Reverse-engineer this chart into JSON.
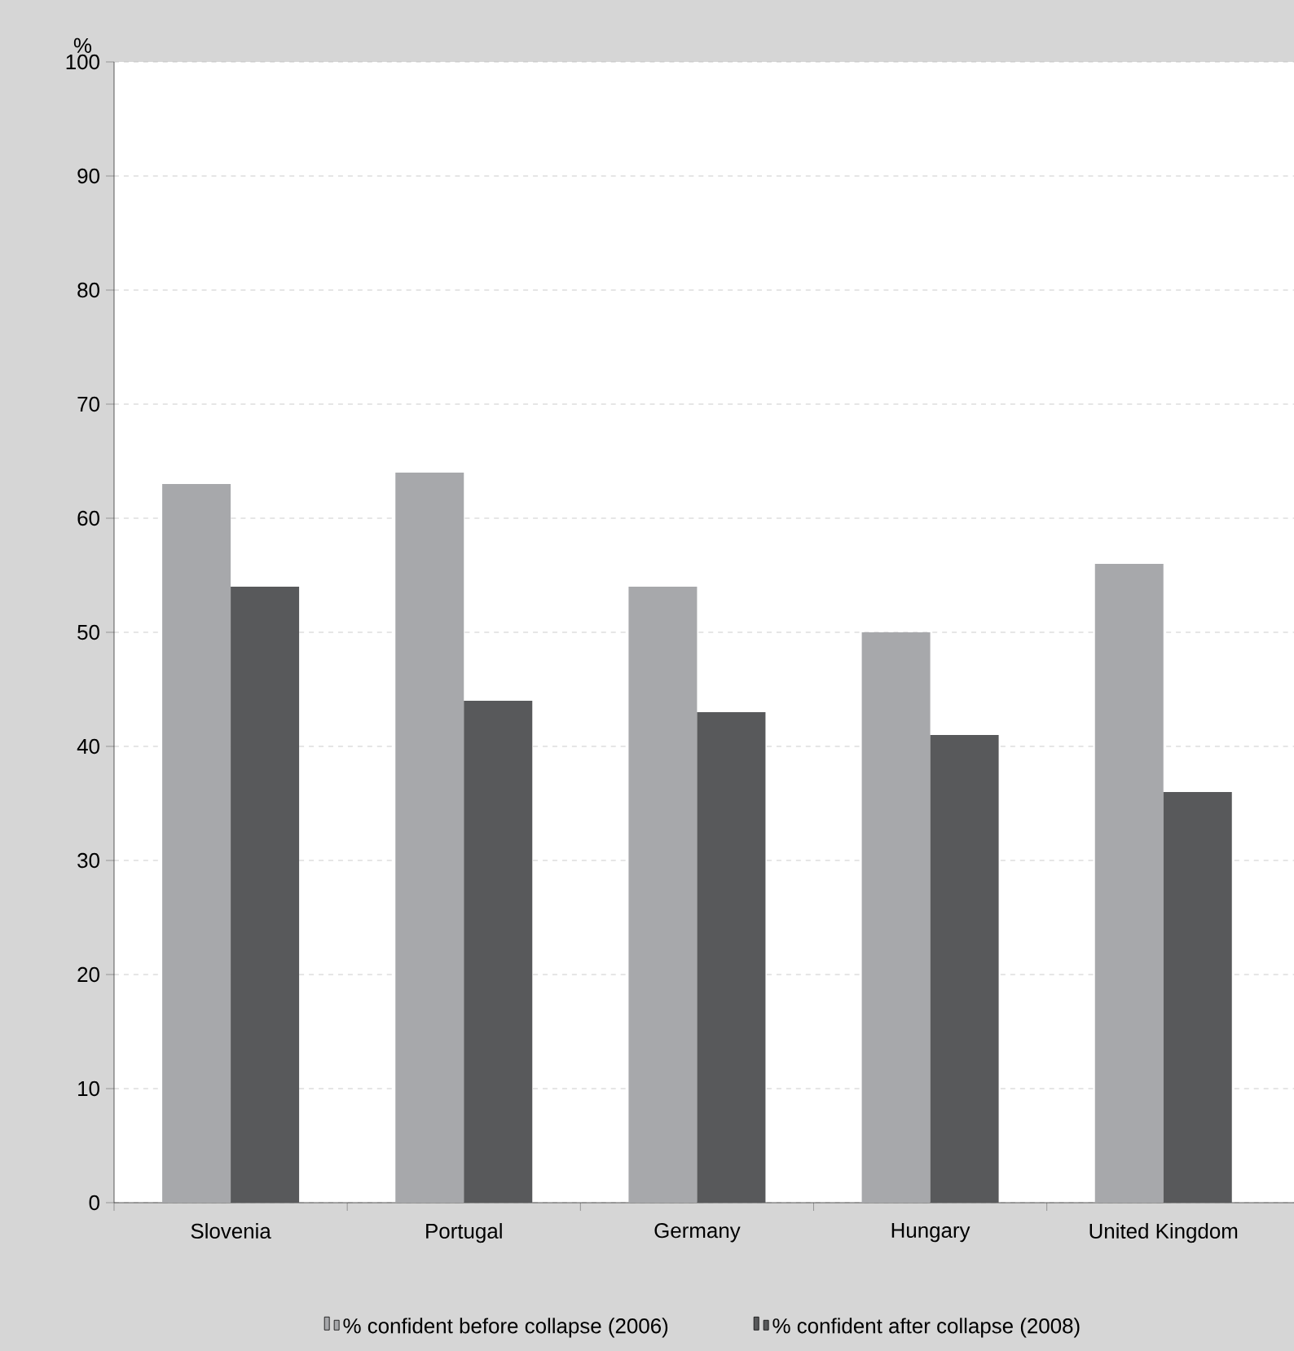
{
  "chart_data": {
    "type": "bar",
    "ylabel": "%",
    "categories": [
      "Slovenia",
      "Portugal",
      "Germany",
      "Hungary",
      "United Kingdom"
    ],
    "series": [
      {
        "name": "% confident before collapse (2006)",
        "color": "#a7a8ab",
        "values": [
          63,
          64,
          54,
          50,
          56
        ]
      },
      {
        "name": "% confident after collapse (2008)",
        "color": "#58595b",
        "values": [
          54,
          44,
          43,
          41,
          36
        ]
      }
    ],
    "ylim": [
      0,
      100
    ],
    "yticks": [
      0,
      10,
      20,
      30,
      40,
      50,
      60,
      70,
      80,
      90,
      100
    ],
    "grid": "y",
    "legend": "bottom"
  }
}
